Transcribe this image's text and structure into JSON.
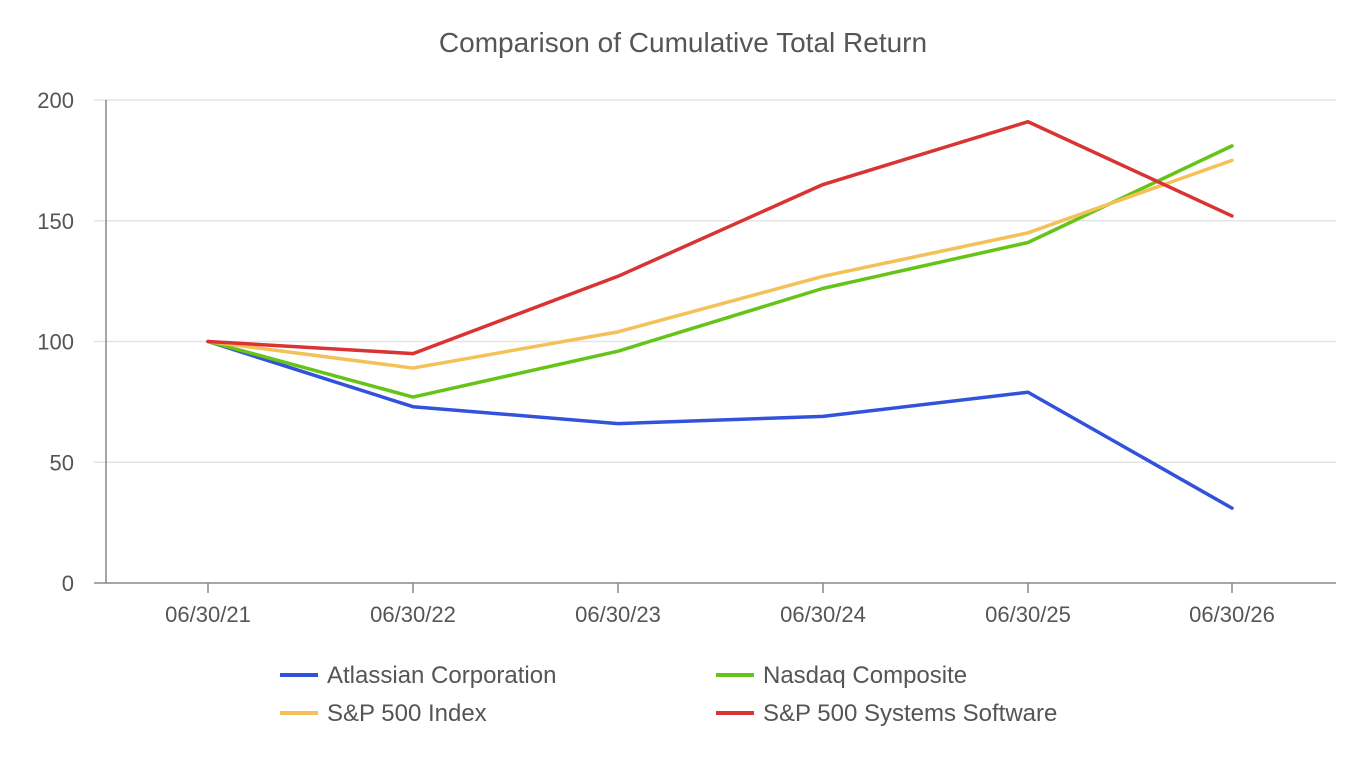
{
  "chart_data": {
    "type": "line",
    "title": "Comparison of Cumulative Total Return",
    "xlabel": "",
    "ylabel": "",
    "categories": [
      "06/30/21",
      "06/30/22",
      "06/30/23",
      "06/30/24",
      "06/30/25",
      "06/30/26"
    ],
    "ylim": [
      0,
      200
    ],
    "yticks": [
      0,
      50,
      100,
      150,
      200
    ],
    "grid": true,
    "legend_position": "bottom",
    "series": [
      {
        "name": "Atlassian Corporation",
        "color": "#3352db",
        "values": [
          100,
          73,
          66,
          69,
          79,
          31
        ]
      },
      {
        "name": "Nasdaq Composite",
        "color": "#66c419",
        "values": [
          100,
          77,
          96,
          122,
          141,
          181
        ]
      },
      {
        "name": "S&P 500 Index",
        "color": "#f4c158",
        "values": [
          100,
          89,
          104,
          127,
          145,
          175
        ]
      },
      {
        "name": "S&P 500 Systems Software",
        "color": "#d93434",
        "values": [
          100,
          95,
          127,
          165,
          191,
          152
        ]
      }
    ]
  }
}
